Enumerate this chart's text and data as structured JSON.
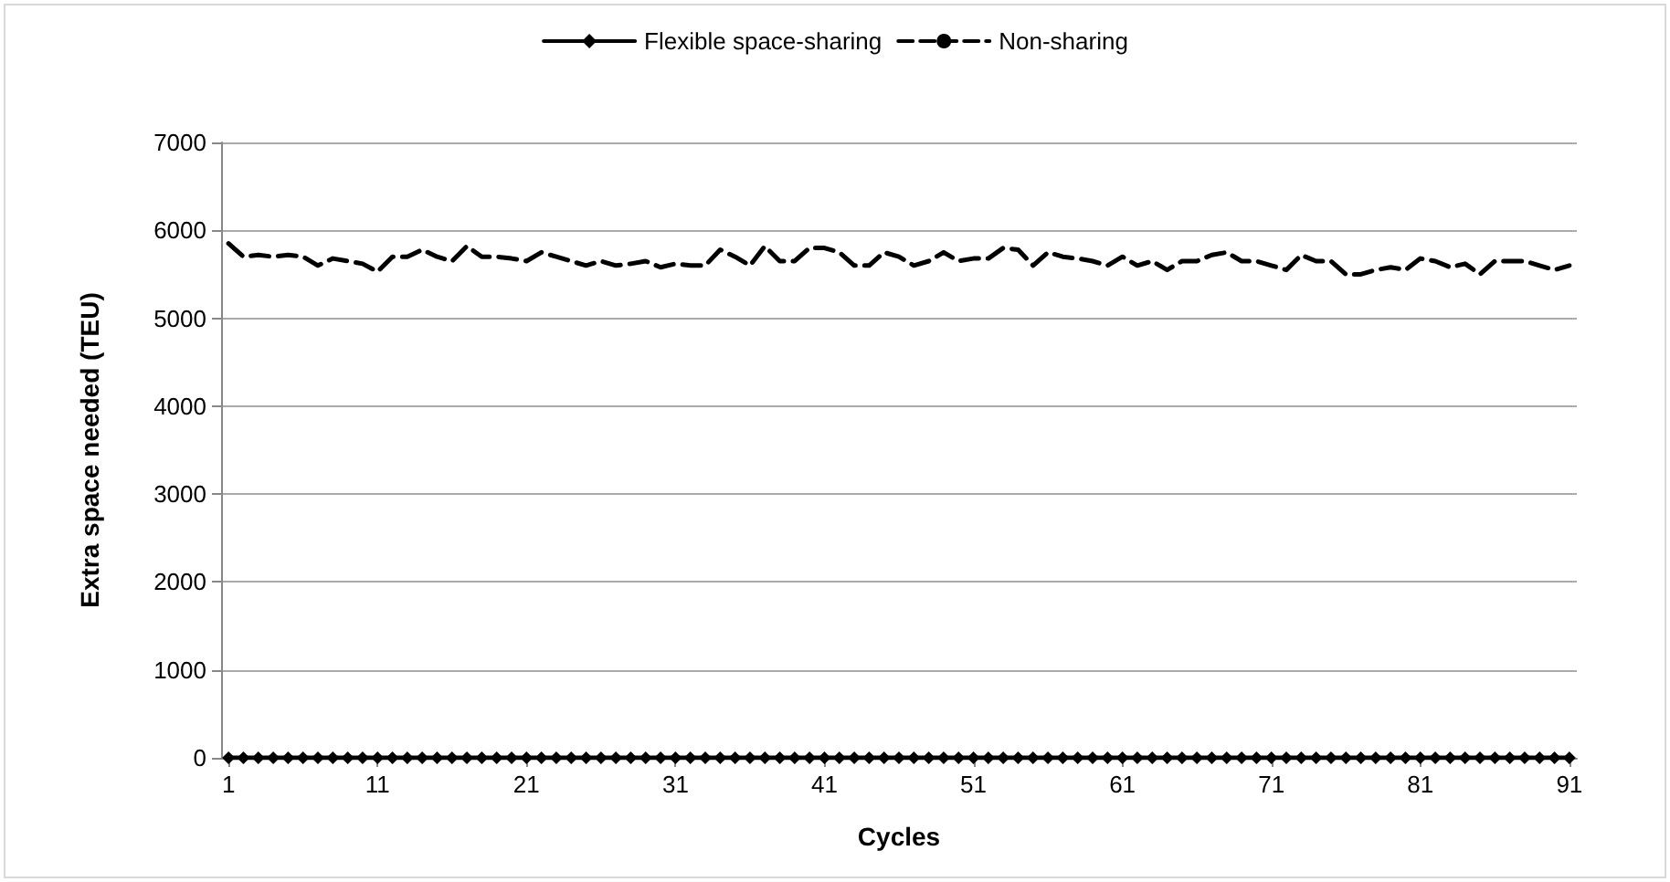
{
  "chart_data": {
    "type": "line",
    "xlabel": "Cycles",
    "ylabel": "Extra space needed (TEU)",
    "categories": [
      "1",
      null,
      null,
      null,
      null,
      null,
      null,
      null,
      null,
      null,
      "11",
      null,
      null,
      null,
      null,
      null,
      null,
      null,
      null,
      null,
      "21",
      null,
      null,
      null,
      null,
      null,
      null,
      null,
      null,
      null,
      "31",
      null,
      null,
      null,
      null,
      null,
      null,
      null,
      null,
      null,
      "41",
      null,
      null,
      null,
      null,
      null,
      null,
      null,
      null,
      null,
      "51",
      null,
      null,
      null,
      null,
      null,
      null,
      null,
      null,
      null,
      "61",
      null,
      null,
      null,
      null,
      null,
      null,
      null,
      null,
      null,
      "71",
      null,
      null,
      null,
      null,
      null,
      null,
      null,
      null,
      null,
      "81",
      null,
      null,
      null,
      null,
      null,
      null,
      null,
      null,
      null,
      "91"
    ],
    "series": [
      {
        "name": "Flexible space-sharing",
        "color": "#000000",
        "marker": "diamond",
        "line_style": "solid",
        "values": [
          0,
          0,
          0,
          0,
          0,
          0,
          0,
          0,
          0,
          0,
          0,
          0,
          0,
          0,
          0,
          0,
          0,
          0,
          0,
          0,
          0,
          0,
          0,
          0,
          0,
          0,
          0,
          0,
          0,
          0,
          0,
          0,
          0,
          0,
          0,
          0,
          0,
          0,
          0,
          0,
          0,
          0,
          0,
          0,
          0,
          0,
          0,
          0,
          0,
          0,
          0,
          0,
          0,
          0,
          0,
          0,
          0,
          0,
          0,
          0,
          0,
          0,
          0,
          0,
          0,
          0,
          0,
          0,
          0,
          0,
          0,
          0,
          0,
          0,
          0,
          0,
          0,
          0,
          0,
          0,
          0,
          0,
          0,
          0,
          0,
          0,
          0,
          0,
          0,
          0,
          0
        ]
      },
      {
        "name": "Non-sharing",
        "color": "#000000",
        "marker": "none",
        "line_style": "dashed",
        "values": [
          5850,
          5700,
          5720,
          5700,
          5720,
          5700,
          5600,
          5680,
          5650,
          5620,
          5530,
          5700,
          5700,
          5780,
          5700,
          5650,
          5820,
          5700,
          5700,
          5680,
          5650,
          5750,
          5700,
          5650,
          5600,
          5650,
          5600,
          5620,
          5650,
          5580,
          5620,
          5600,
          5600,
          5780,
          5700,
          5600,
          5820,
          5650,
          5650,
          5800,
          5800,
          5750,
          5600,
          5600,
          5750,
          5700,
          5600,
          5650,
          5750,
          5650,
          5680,
          5680,
          5800,
          5780,
          5600,
          5750,
          5700,
          5680,
          5650,
          5600,
          5700,
          5600,
          5650,
          5550,
          5650,
          5650,
          5720,
          5750,
          5650,
          5650,
          5600,
          5550,
          5720,
          5650,
          5650,
          5500,
          5500,
          5550,
          5580,
          5550,
          5680,
          5650,
          5580,
          5620,
          5500,
          5650,
          5650,
          5650,
          5600,
          5550,
          5600
        ]
      }
    ],
    "ylim": [
      0,
      7000
    ],
    "yticks": [
      0,
      1000,
      2000,
      3000,
      4000,
      5000,
      6000,
      7000
    ],
    "grid": "y",
    "legend": "top"
  }
}
